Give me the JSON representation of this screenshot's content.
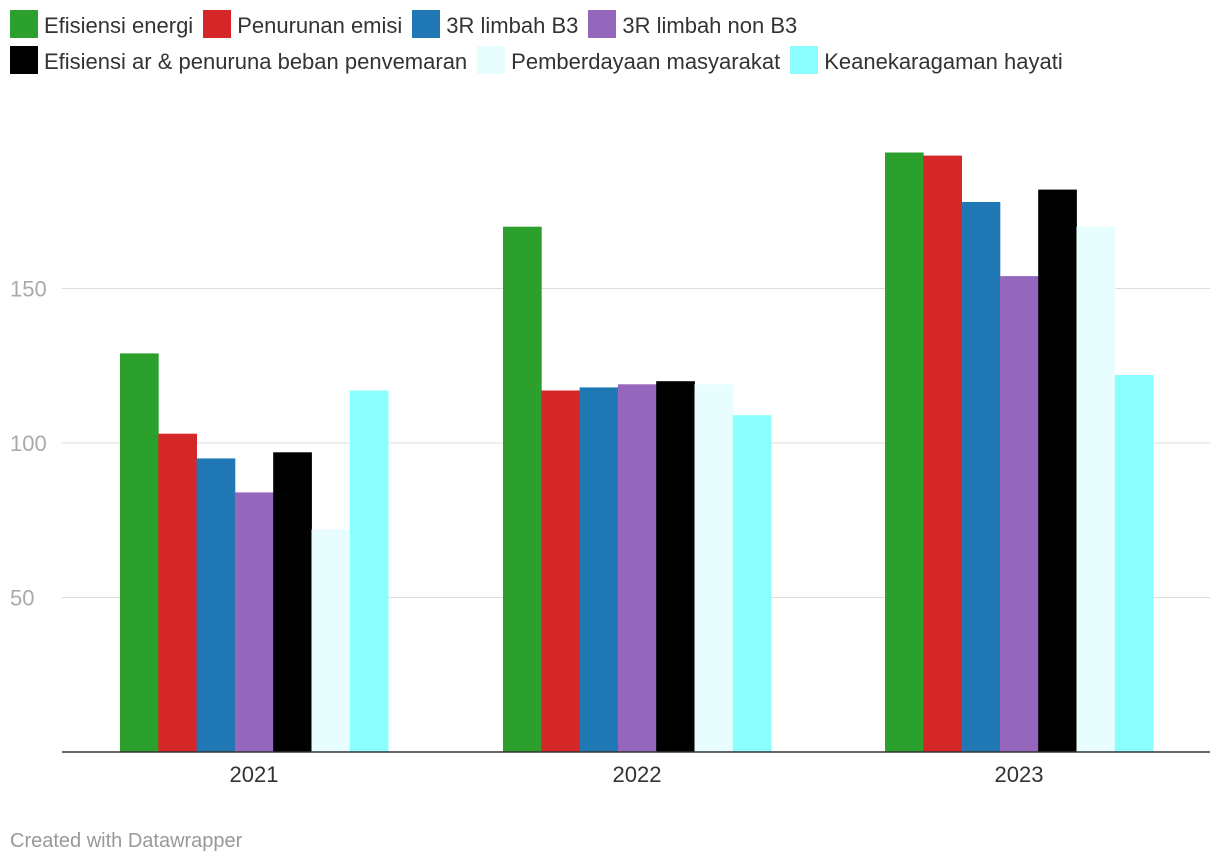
{
  "chart_data": {
    "type": "bar",
    "categories": [
      "2021",
      "2022",
      "2023"
    ],
    "series": [
      {
        "name": "Efisiensi energi",
        "color": "#2ca02c",
        "values": [
          129,
          170,
          194
        ]
      },
      {
        "name": "Penurunan emisi",
        "color": "#d62728",
        "values": [
          103,
          117,
          193
        ]
      },
      {
        "name": "3R limbah B3",
        "color": "#1f77b4",
        "values": [
          95,
          118,
          178
        ]
      },
      {
        "name": "3R limbah non B3",
        "color": "#9467bd",
        "values": [
          84,
          119,
          154
        ]
      },
      {
        "name": "Efisiensi ar & penuruna beban penvemaran",
        "color": "#000000",
        "values": [
          97,
          120,
          182
        ]
      },
      {
        "name": "Pemberdayaan masyarakat",
        "color": "#e8fefe",
        "values": [
          72,
          119,
          170
        ]
      },
      {
        "name": "Keanekaragaman hayati",
        "color": "#8bfffe",
        "values": [
          117,
          109,
          122
        ]
      }
    ],
    "yticks": [
      50,
      100,
      150
    ],
    "ylim": [
      0,
      200
    ],
    "grid": true,
    "legend": "top",
    "title": "",
    "xlabel": "",
    "ylabel": ""
  },
  "footer": {
    "credit": "Created with Datawrapper"
  }
}
